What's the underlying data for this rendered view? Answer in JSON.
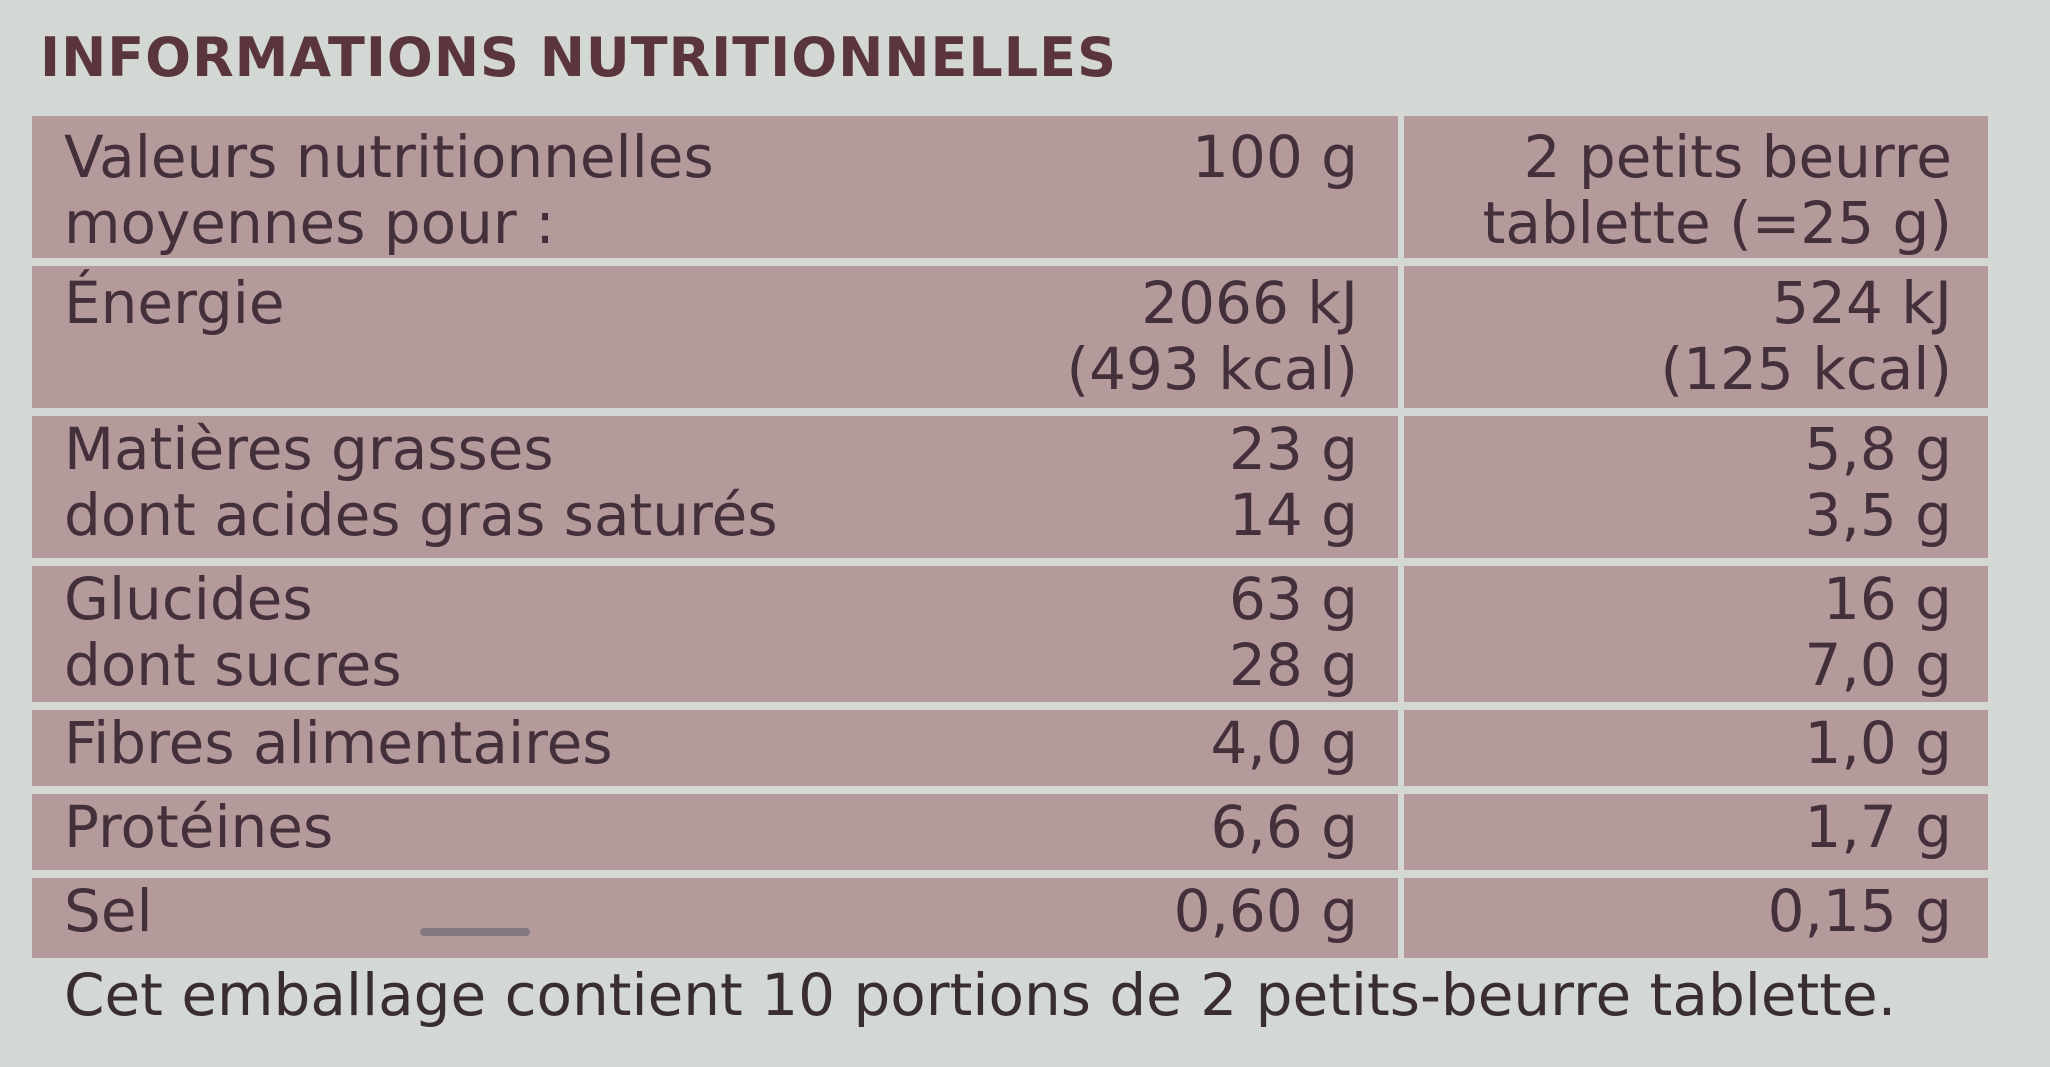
{
  "title": "INFORMATIONS NUTRITIONNELLES",
  "header": {
    "label_lines": [
      "Valeurs nutritionnelles",
      "moyennes pour :"
    ],
    "col_100g": "100 g",
    "col_portion_lines": [
      "2 petits beurre",
      "tablette (=25 g)"
    ]
  },
  "rows": [
    {
      "labels": [
        "Énergie"
      ],
      "per_100g": [
        "2066 kJ",
        "(493 kcal)"
      ],
      "per_portion": [
        "524 kJ",
        "(125 kcal)"
      ]
    },
    {
      "labels": [
        "Matières grasses",
        "dont acides gras saturés"
      ],
      "per_100g": [
        "23 g",
        "14 g"
      ],
      "per_portion": [
        "5,8 g",
        "3,5 g"
      ]
    },
    {
      "labels": [
        "Glucides",
        "dont sucres"
      ],
      "per_100g": [
        "63 g",
        "28 g"
      ],
      "per_portion": [
        "16 g",
        "7,0 g"
      ]
    },
    {
      "labels": [
        "Fibres alimentaires"
      ],
      "per_100g": [
        "4,0 g"
      ],
      "per_portion": [
        "1,0 g"
      ]
    },
    {
      "labels": [
        "Protéines"
      ],
      "per_100g": [
        "6,6 g"
      ],
      "per_portion": [
        "1,7 g"
      ]
    },
    {
      "labels": [
        "Sel"
      ],
      "per_100g": [
        "0,60 g"
      ],
      "per_portion": [
        "0,15 g"
      ]
    }
  ],
  "footer": "Cet emballage contient 10 portions de 2 petits-beurre tablette."
}
